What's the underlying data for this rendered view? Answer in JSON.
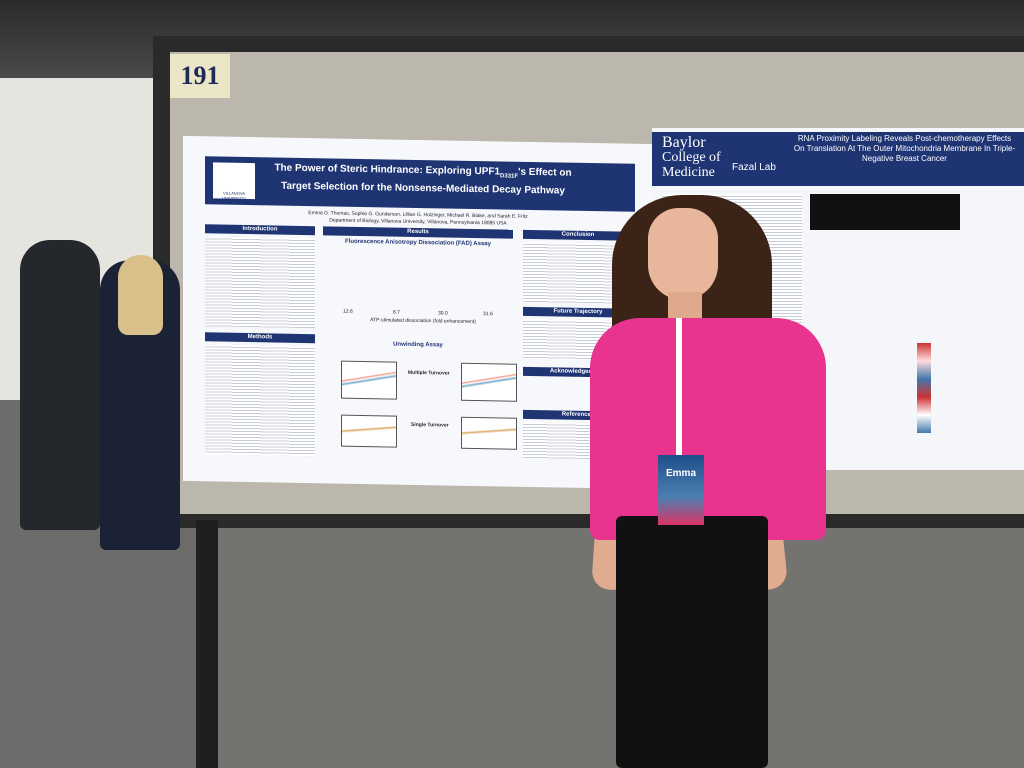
{
  "board_number": "191",
  "left_poster": {
    "university": "VILLANOVA UNIVERSITY",
    "title": "The Power of Steric Hindrance: Exploring UPF1",
    "title_subscript": "D331F",
    "title_rest": "'s Effect on Target Selection for the Nonsense-Mediated Decay Pathway",
    "authors": "Emma G. Thomas, Sophie G. Gunderson, Lillian G. Holzinger, Michael R. Blake, and Sarah E. Fritz",
    "affiliation": "Department of Biology, Villanova University, Villanova, Pennsylvania 19085 USA",
    "sections": [
      "Introduction",
      "Results",
      "Conclusion",
      "Methods",
      "Future Trajectory",
      "Acknowledgements",
      "References"
    ],
    "results_heading": "Fluorescence Anisotropy Dissociation (FAD) Assay",
    "fold_values": [
      "12.6",
      "6.7",
      "30.0",
      "31.6"
    ],
    "fold_caption": "ATP-stimulated dissociation (fold enhancement)",
    "unwinding_heading": "Unwinding Assay",
    "multiple_turnover": "Multiple Turnover",
    "single_turnover": "Single Turnover"
  },
  "right_poster": {
    "institution_1": "Baylor",
    "institution_2": "College of",
    "institution_3": "Medicine",
    "lab": "Fazal Lab",
    "title": "RNA Proximity Labeling Reveals Post-chemotherapy Effects On Translation At The Outer Mitochondria Membrane In Triple-Negative Breast Cancer"
  },
  "badge": {
    "name": "Emma"
  }
}
